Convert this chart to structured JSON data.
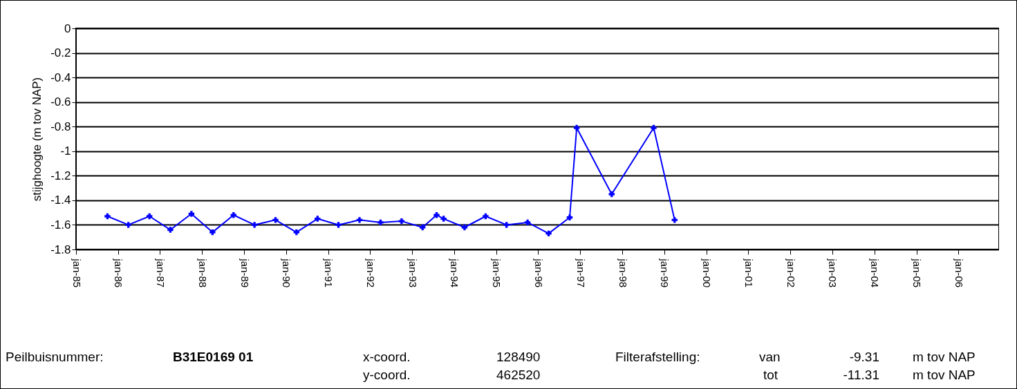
{
  "chart_data": {
    "type": "line",
    "ylabel": "stijghoogte (m tov NAP)",
    "x": [
      "1985-10",
      "1986-04",
      "1986-10",
      "1987-04",
      "1987-10",
      "1988-04",
      "1988-10",
      "1989-04",
      "1989-10",
      "1990-04",
      "1990-10",
      "1991-04",
      "1991-10",
      "1992-04",
      "1992-10",
      "1993-04",
      "1993-08",
      "1993-10",
      "1994-04",
      "1994-10",
      "1995-04",
      "1995-10",
      "1996-04",
      "1996-10",
      "1996-12",
      "1997-10",
      "1998-10",
      "1999-04"
    ],
    "series": [
      {
        "color": "#0000ff",
        "values": [
          -1.53,
          -1.6,
          -1.53,
          -1.64,
          -1.51,
          -1.66,
          -1.52,
          -1.6,
          -1.56,
          -1.66,
          -1.55,
          -1.6,
          -1.56,
          -1.58,
          -1.57,
          -1.62,
          -1.52,
          -1.55,
          -1.62,
          -1.53,
          -1.6,
          -1.58,
          -1.67,
          -1.54,
          -0.81,
          -1.35,
          -0.81,
          -1.56
        ]
      }
    ],
    "xlim": [
      "1985-01-01",
      "2006-12-20"
    ],
    "xticks": [
      {
        "value": "1985-01-01",
        "label": "jan-85"
      },
      {
        "value": "1986-01-01",
        "label": "jan-86"
      },
      {
        "value": "1987-01-01",
        "label": "jan-87"
      },
      {
        "value": "1988-01-01",
        "label": "jan-88"
      },
      {
        "value": "1989-01-01",
        "label": "jan-89"
      },
      {
        "value": "1990-01-01",
        "label": "jan-90"
      },
      {
        "value": "1991-01-01",
        "label": "jan-91"
      },
      {
        "value": "1992-01-01",
        "label": "jan-92"
      },
      {
        "value": "1993-01-01",
        "label": "jan-93"
      },
      {
        "value": "1994-01-01",
        "label": "jan-94"
      },
      {
        "value": "1995-01-01",
        "label": "jan-95"
      },
      {
        "value": "1996-01-01",
        "label": "jan-96"
      },
      {
        "value": "1997-01-01",
        "label": "jan-97"
      },
      {
        "value": "1998-01-01",
        "label": "jan-98"
      },
      {
        "value": "1999-01-01",
        "label": "jan-99"
      },
      {
        "value": "2000-01-01",
        "label": "jan-00"
      },
      {
        "value": "2001-01-01",
        "label": "jan-01"
      },
      {
        "value": "2002-01-01",
        "label": "jan-02"
      },
      {
        "value": "2003-01-01",
        "label": "jan-03"
      },
      {
        "value": "2004-01-01",
        "label": "jan-04"
      },
      {
        "value": "2005-01-01",
        "label": "jan-05"
      },
      {
        "value": "2006-01-01",
        "label": "jan-06"
      }
    ],
    "ylim": [
      -1.8,
      0
    ],
    "yticks": [
      -1.8,
      -1.6,
      -1.4,
      -1.2,
      -1,
      -0.8,
      -0.6,
      -0.4,
      -0.2,
      0
    ],
    "grid": "y",
    "marker": "cross",
    "line_style": "solid",
    "legend": false,
    "annotations": [
      "Peilbuisnummer:",
      "B31E0169 01",
      "x-coord.",
      "128490",
      "Filterafstelling:",
      "van",
      "-9.31",
      "m tov NAP",
      "y-coord.",
      "462520",
      "tot",
      "-11.31",
      "m tov NAP"
    ]
  }
}
